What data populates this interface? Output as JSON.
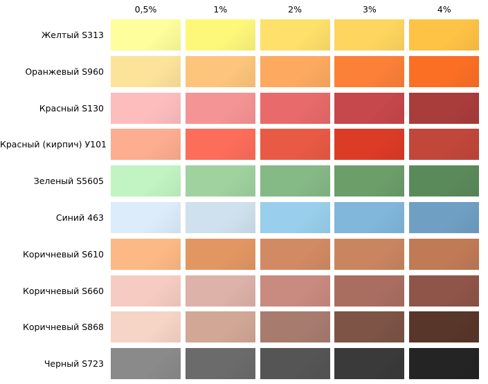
{
  "table": {
    "header": [
      "0,5%",
      "1%",
      "2%",
      "3%",
      "4%"
    ],
    "rows": [
      {
        "label": "Желтый S313",
        "colors": [
          "#fefe9c",
          "#fdf77a",
          "#fee06a",
          "#fed55f",
          "#fec245"
        ]
      },
      {
        "label": "Оранжевый S960",
        "colors": [
          "#fde39a",
          "#fdc57c",
          "#fdaa60",
          "#fc8038",
          "#fb6f25"
        ]
      },
      {
        "label": "Красный S130",
        "colors": [
          "#fdbdbd",
          "#f59494",
          "#e86a6a",
          "#c6474c",
          "#a93d3c"
        ]
      },
      {
        "label": "Красный (кирпич) У101",
        "colors": [
          "#fdad90",
          "#fc6d5a",
          "#e85a44",
          "#dc3b26",
          "#c0473a"
        ]
      },
      {
        "label": "Зеленый S5605",
        "colors": [
          "#c1f4c2",
          "#9fd29f",
          "#85b986",
          "#6c9e6a",
          "#5b8a5a"
        ]
      },
      {
        "label": "Синий 463",
        "colors": [
          "#dcecfb",
          "#cfe1ee",
          "#99cfec",
          "#80b7db",
          "#6f9fc3"
        ]
      },
      {
        "label": "Коричневый S610",
        "colors": [
          "#fdb985",
          "#e29763",
          "#d28a64",
          "#c98560",
          "#c07a56"
        ]
      },
      {
        "label": "Коричневый S660",
        "colors": [
          "#f6ccc2",
          "#ddb2a8",
          "#c98a7f",
          "#aa6e61",
          "#8f5548"
        ]
      },
      {
        "label": "Коричневый S868",
        "colors": [
          "#f6d4c6",
          "#d2a796",
          "#a77c6f",
          "#7d5446",
          "#583629"
        ]
      },
      {
        "label": "Черный S723",
        "colors": [
          "#8a8a8a",
          "#6b6b6b",
          "#555555",
          "#3a3a3a",
          "#242424"
        ]
      }
    ]
  }
}
